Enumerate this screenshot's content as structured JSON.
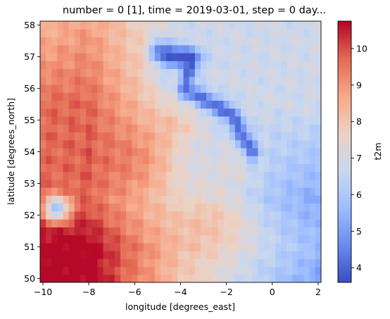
{
  "chart_data": {
    "type": "heatmap",
    "title": "number = 0 [1], time = 2019-03-01, step = 0 day...",
    "xlabel": "longitude [degrees_east]",
    "ylabel": "latitude [degrees_north]",
    "colorbar_label": "t2m",
    "xlim": [
      -10.125,
      2.125
    ],
    "ylim": [
      49.875,
      58.125
    ],
    "x_ticks": [
      -10,
      -8,
      -6,
      -4,
      -2,
      0,
      2
    ],
    "x_tick_labels": [
      "−10",
      "−8",
      "−6",
      "−4",
      "−2",
      "0",
      "2"
    ],
    "y_ticks": [
      50,
      51,
      52,
      53,
      54,
      55,
      56,
      57,
      58
    ],
    "y_tick_labels": [
      "50",
      "51",
      "52",
      "53",
      "54",
      "55",
      "56",
      "57",
      "58"
    ],
    "colorbar_range": [
      3.6,
      10.75
    ],
    "colorbar_ticks": [
      4,
      5,
      6,
      7,
      8,
      9,
      10
    ],
    "colorbar_tick_labels": [
      "4",
      "5",
      "6",
      "7",
      "8",
      "9",
      "10"
    ],
    "colormap": "coolwarm",
    "colormap_stops": [
      "#3b4cc0",
      "#6a8bef",
      "#9ebeff",
      "#c9d8ef",
      "#edd1c2",
      "#f7a889",
      "#e36a53",
      "#b40426"
    ],
    "grid_resolution_deg": 0.25,
    "grid": false,
    "field_description": "2 m temperature; warm (8-10.5) over the south-west and along the southern edge, cool band (4-6) running from 57.2N 5W down to 54N 1W, cool patch (4.5) near 52.2N 9.3W, neutral (6-7) over the north-east"
  }
}
